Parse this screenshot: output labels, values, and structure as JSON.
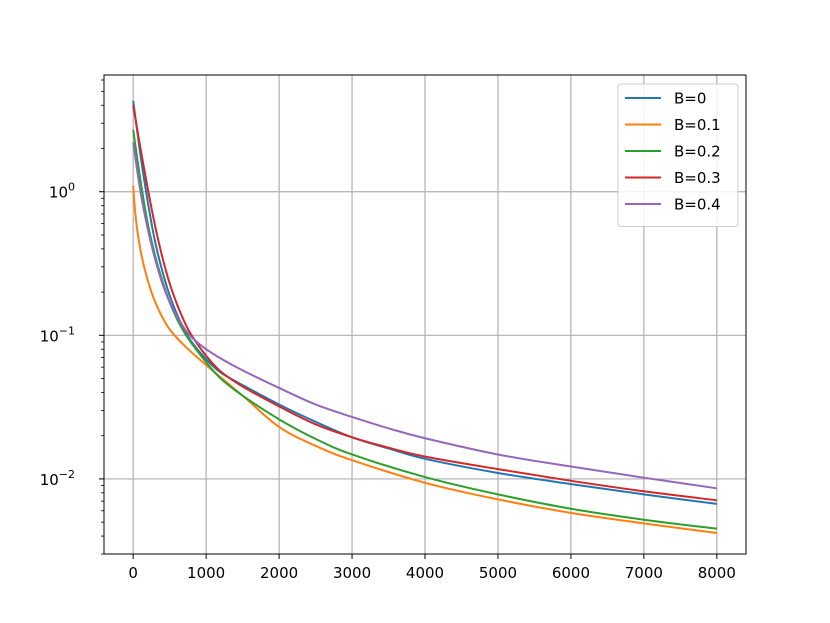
{
  "chart_data": {
    "type": "line",
    "title": "",
    "xlabel": "",
    "ylabel": "",
    "xlim": [
      -400,
      8400
    ],
    "ylim": [
      0.003,
      6.5
    ],
    "yscale": "log",
    "grid": true,
    "legend_position": "top-right",
    "x_ticks": [
      0,
      1000,
      2000,
      3000,
      4000,
      5000,
      6000,
      7000,
      8000
    ],
    "x_tick_labels": [
      "0",
      "1000",
      "2000",
      "3000",
      "4000",
      "5000",
      "6000",
      "7000",
      "8000"
    ],
    "y_ticks": [
      {
        "value": 1,
        "base": "10",
        "exp": "0"
      },
      {
        "value": 0.1,
        "base": "10",
        "exp": "−1"
      },
      {
        "value": 0.01,
        "base": "10",
        "exp": "−2"
      }
    ],
    "series": [
      {
        "name": "B=0",
        "color": "#1f77b4",
        "x": [
          0,
          100,
          200,
          300,
          400,
          500,
          600,
          700,
          800,
          1000,
          1200,
          1500,
          2000,
          2500,
          3000,
          3500,
          4000,
          5000,
          6000,
          7000,
          8000
        ],
        "y": [
          4.3,
          1.8,
          0.85,
          0.45,
          0.28,
          0.19,
          0.14,
          0.11,
          0.09,
          0.068,
          0.055,
          0.045,
          0.033,
          0.025,
          0.0195,
          0.0163,
          0.0138,
          0.011,
          0.0092,
          0.0078,
          0.0067
        ]
      },
      {
        "name": "B=0.1",
        "color": "#ff7f0e",
        "x": [
          0,
          30,
          80,
          150,
          250,
          350,
          500,
          700,
          1000,
          1500,
          2000,
          2500,
          3000,
          4000,
          5000,
          6000,
          7000,
          8000
        ],
        "y": [
          1.1,
          0.7,
          0.45,
          0.3,
          0.2,
          0.15,
          0.11,
          0.085,
          0.062,
          0.038,
          0.023,
          0.017,
          0.0135,
          0.0094,
          0.0072,
          0.0058,
          0.0049,
          0.0042
        ]
      },
      {
        "name": "B=0.2",
        "color": "#2ca02c",
        "x": [
          0,
          100,
          200,
          300,
          400,
          500,
          600,
          700,
          800,
          1000,
          1200,
          1500,
          2000,
          2500,
          3000,
          4000,
          5000,
          6000,
          7000,
          8000
        ],
        "y": [
          2.7,
          1.2,
          0.6,
          0.36,
          0.24,
          0.17,
          0.13,
          0.105,
          0.088,
          0.065,
          0.05,
          0.038,
          0.026,
          0.019,
          0.0148,
          0.0103,
          0.0078,
          0.0062,
          0.0052,
          0.0045
        ]
      },
      {
        "name": "B=0.3",
        "color": "#d62728",
        "x": [
          0,
          100,
          200,
          300,
          400,
          500,
          600,
          700,
          800,
          1000,
          1200,
          1500,
          2000,
          2500,
          3000,
          3500,
          4000,
          5000,
          6000,
          7000,
          8000
        ],
        "y": [
          4.0,
          2.0,
          1.05,
          0.58,
          0.35,
          0.23,
          0.165,
          0.125,
          0.1,
          0.072,
          0.056,
          0.044,
          0.032,
          0.024,
          0.0195,
          0.0165,
          0.0143,
          0.0117,
          0.0097,
          0.0082,
          0.0071
        ]
      },
      {
        "name": "B=0.4",
        "color": "#9467bd",
        "x": [
          0,
          100,
          200,
          300,
          400,
          500,
          600,
          700,
          800,
          1000,
          1200,
          1500,
          2000,
          2500,
          3000,
          3500,
          4000,
          5000,
          6000,
          7000,
          8000
        ],
        "y": [
          2.2,
          1.0,
          0.55,
          0.34,
          0.23,
          0.17,
          0.135,
          0.112,
          0.097,
          0.08,
          0.069,
          0.057,
          0.043,
          0.033,
          0.027,
          0.0225,
          0.0192,
          0.0148,
          0.0122,
          0.0102,
          0.0086
        ]
      }
    ]
  }
}
